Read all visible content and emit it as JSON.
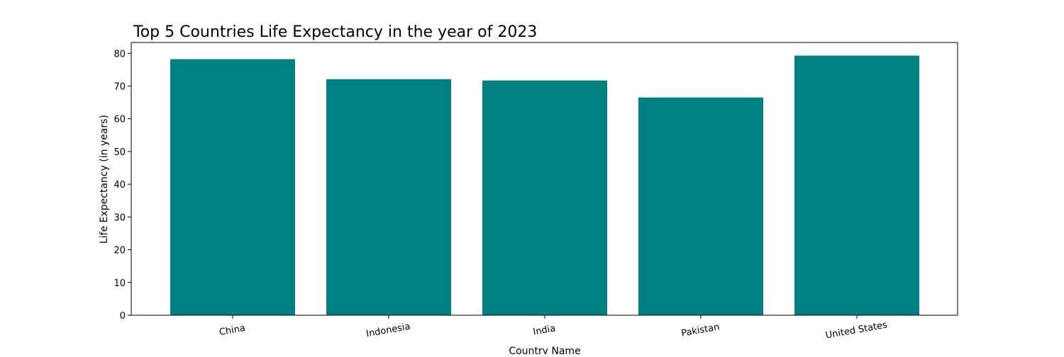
{
  "chart_data": {
    "type": "bar",
    "title": "Top 5 Countries Life Expectancy in the year of 2023",
    "xlabel": "Country Name",
    "ylabel": "Life Expectancy (in years)",
    "categories": [
      "China",
      "Indonesia",
      "India",
      "Pakistan",
      "United States"
    ],
    "values": [
      78.2,
      72.1,
      71.7,
      66.5,
      79.3
    ],
    "ylim": [
      0,
      83.3
    ],
    "yticks": [
      0,
      10,
      20,
      30,
      40,
      50,
      60,
      70,
      80
    ],
    "bar_color": "#008080",
    "grid": false,
    "legend": "none"
  }
}
